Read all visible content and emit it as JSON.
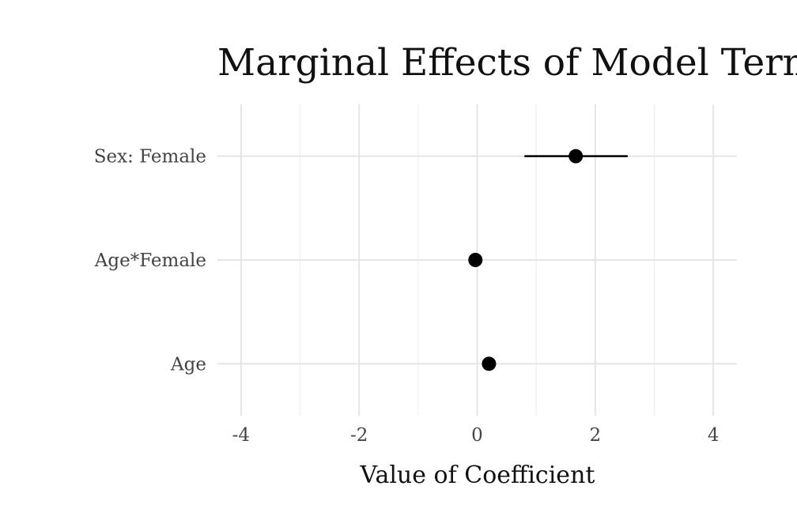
{
  "chart_data": {
    "type": "scatter",
    "title": "Marginal Effects of Model Terms",
    "xlabel": "Value of Coefficient",
    "ylabel": "",
    "xlim": [
      -4.4,
      4.4
    ],
    "xticks": [
      -4,
      -2,
      0,
      2,
      4
    ],
    "xtick_labels": [
      "-4",
      "-2",
      "0",
      "2",
      "4"
    ],
    "categories": [
      "Sex: Female",
      "Age*Female",
      "Age"
    ],
    "points": [
      {
        "term": "Sex: Female",
        "estimate": 1.67,
        "ci_low": 0.8,
        "ci_high": 2.55
      },
      {
        "term": "Age*Female",
        "estimate": -0.03,
        "ci_low": -0.03,
        "ci_high": -0.03
      },
      {
        "term": "Age",
        "estimate": 0.2,
        "ci_low": 0.2,
        "ci_high": 0.2
      }
    ],
    "grid": true,
    "legend": "none"
  }
}
